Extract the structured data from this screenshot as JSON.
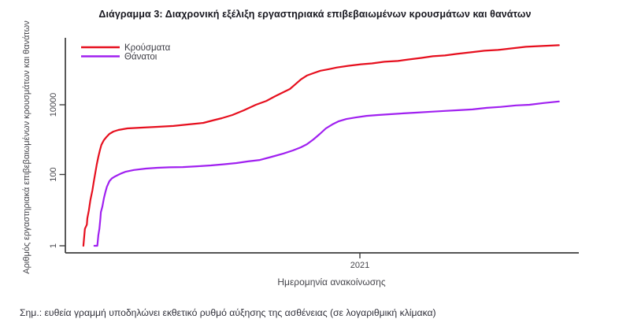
{
  "title": "Διάγραμμα 3: Διαχρονική εξέλιξη εργαστηριακά επιβεβαιωμένων κρουσμάτων και θανάτων",
  "footnote": "Σημ.: ευθεία γραμμή υποδηλώνει εκθετικό ρυθμό αύξησης της ασθένειας (σε λογαριθμική κλίμακα)",
  "colors": {
    "cases_line": "#e60f1e",
    "deaths_line": "#a020f0",
    "axis": "#3d3d3d",
    "text": "#45454b",
    "title_text": "#17171f"
  },
  "chart_data": {
    "type": "line",
    "title": "",
    "xlabel": "Ημερομηνία ανακοίνωσης",
    "ylabel": "Αριθμός εργαστηριακά επιβεβαιωμένων κρουσμάτων και θανάτων",
    "yscale": "log",
    "ylim": [
      1,
      800000
    ],
    "yticks": [
      1,
      100,
      10000
    ],
    "ytick_labels": [
      "1",
      "100",
      "10000"
    ],
    "xticks": [
      {
        "label": "2021",
        "fraction": 0.589
      }
    ],
    "grid": false,
    "legend_position": "top-left",
    "x_note": "x values are fractions of the time axis; 2021-01-01 at fraction 0.589",
    "series": [
      {
        "name": "Κρούσματα",
        "color": "#e60f1e",
        "points": [
          [
            0.036,
            1
          ],
          [
            0.038,
            2
          ],
          [
            0.039,
            3
          ],
          [
            0.043,
            4
          ],
          [
            0.044,
            6
          ],
          [
            0.047,
            10
          ],
          [
            0.05,
            20
          ],
          [
            0.054,
            37
          ],
          [
            0.057,
            68
          ],
          [
            0.06,
            120
          ],
          [
            0.063,
            210
          ],
          [
            0.066,
            335
          ],
          [
            0.069,
            505
          ],
          [
            0.072,
            725
          ],
          [
            0.077,
            990
          ],
          [
            0.082,
            1210
          ],
          [
            0.088,
            1490
          ],
          [
            0.096,
            1740
          ],
          [
            0.106,
            1930
          ],
          [
            0.124,
            2140
          ],
          [
            0.153,
            2250
          ],
          [
            0.184,
            2370
          ],
          [
            0.216,
            2500
          ],
          [
            0.247,
            2770
          ],
          [
            0.276,
            3070
          ],
          [
            0.294,
            3580
          ],
          [
            0.313,
            4180
          ],
          [
            0.334,
            5120
          ],
          [
            0.357,
            6980
          ],
          [
            0.381,
            10000
          ],
          [
            0.402,
            12900
          ],
          [
            0.42,
            17600
          ],
          [
            0.436,
            22800
          ],
          [
            0.449,
            28000
          ],
          [
            0.46,
            38300
          ],
          [
            0.471,
            52300
          ],
          [
            0.483,
            67600
          ],
          [
            0.496,
            78900
          ],
          [
            0.51,
            92100
          ],
          [
            0.526,
            102000
          ],
          [
            0.543,
            114000
          ],
          [
            0.565,
            127000
          ],
          [
            0.591,
            141000
          ],
          [
            0.613,
            149000
          ],
          [
            0.638,
            166000
          ],
          [
            0.665,
            175000
          ],
          [
            0.676,
            184000
          ],
          [
            0.688,
            194000
          ],
          [
            0.712,
            214000
          ],
          [
            0.735,
            238000
          ],
          [
            0.759,
            250000
          ],
          [
            0.783,
            278000
          ],
          [
            0.811,
            308000
          ],
          [
            0.838,
            341000
          ],
          [
            0.865,
            359000
          ],
          [
            0.893,
            398000
          ],
          [
            0.921,
            441000
          ],
          [
            0.953,
            465000
          ],
          [
            0.987,
            489000
          ]
        ]
      },
      {
        "name": "Θάνατοι",
        "color": "#a020f0",
        "points": [
          [
            0.058,
            1
          ],
          [
            0.064,
            1
          ],
          [
            0.066,
            2
          ],
          [
            0.068,
            3
          ],
          [
            0.07,
            6
          ],
          [
            0.071,
            9
          ],
          [
            0.074,
            13
          ],
          [
            0.077,
            22
          ],
          [
            0.08,
            33
          ],
          [
            0.083,
            47
          ],
          [
            0.088,
            68
          ],
          [
            0.093,
            82
          ],
          [
            0.099,
            92
          ],
          [
            0.106,
            103
          ],
          [
            0.113,
            115
          ],
          [
            0.121,
            127
          ],
          [
            0.137,
            141
          ],
          [
            0.161,
            155
          ],
          [
            0.184,
            163
          ],
          [
            0.208,
            168
          ],
          [
            0.235,
            171
          ],
          [
            0.263,
            180
          ],
          [
            0.291,
            190
          ],
          [
            0.318,
            205
          ],
          [
            0.342,
            222
          ],
          [
            0.365,
            247
          ],
          [
            0.389,
            272
          ],
          [
            0.413,
            335
          ],
          [
            0.436,
            413
          ],
          [
            0.455,
            506
          ],
          [
            0.471,
            621
          ],
          [
            0.483,
            759
          ],
          [
            0.496,
            1040
          ],
          [
            0.509,
            1490
          ],
          [
            0.521,
            2140
          ],
          [
            0.534,
            2770
          ],
          [
            0.546,
            3380
          ],
          [
            0.562,
            3940
          ],
          [
            0.581,
            4370
          ],
          [
            0.602,
            4840
          ],
          [
            0.625,
            5120
          ],
          [
            0.649,
            5400
          ],
          [
            0.676,
            5700
          ],
          [
            0.704,
            6000
          ],
          [
            0.732,
            6350
          ],
          [
            0.759,
            6700
          ],
          [
            0.786,
            7000
          ],
          [
            0.814,
            7400
          ],
          [
            0.843,
            8200
          ],
          [
            0.871,
            8700
          ],
          [
            0.901,
            9600
          ],
          [
            0.928,
            10000
          ],
          [
            0.956,
            11200
          ],
          [
            0.987,
            12400
          ]
        ]
      }
    ]
  }
}
